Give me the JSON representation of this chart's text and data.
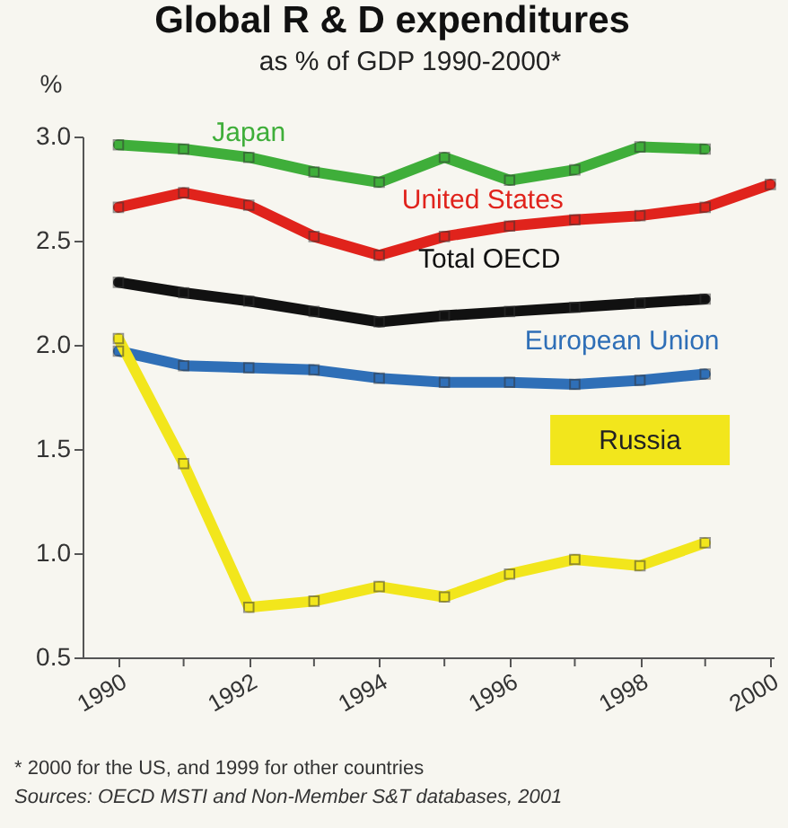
{
  "chart_data": {
    "type": "line",
    "title": "Global R & D expenditures",
    "subtitle": "as % of GDP 1990-2000*",
    "ylabel": "%",
    "x": [
      1990,
      1991,
      1992,
      1993,
      1994,
      1995,
      1996,
      1997,
      1998,
      1999
    ],
    "series": [
      {
        "name": "Japan",
        "color": "#3fae3a",
        "values": [
          2.96,
          2.94,
          2.9,
          2.83,
          2.78,
          2.9,
          2.79,
          2.84,
          2.95,
          2.94
        ]
      },
      {
        "name": "United States",
        "color": "#e0231c",
        "x": [
          1990,
          1991,
          1992,
          1993,
          1994,
          1995,
          1996,
          1997,
          1998,
          1999,
          2000
        ],
        "values": [
          2.66,
          2.73,
          2.67,
          2.52,
          2.43,
          2.52,
          2.57,
          2.6,
          2.62,
          2.66,
          2.77
        ]
      },
      {
        "name": "Total OECD",
        "color": "#111111",
        "values": [
          2.3,
          2.25,
          2.21,
          2.16,
          2.11,
          2.14,
          2.16,
          2.18,
          2.2,
          2.22
        ]
      },
      {
        "name": "European Union",
        "color": "#2f6fb7",
        "values": [
          1.97,
          1.9,
          1.89,
          1.88,
          1.84,
          1.82,
          1.82,
          1.81,
          1.83,
          1.86
        ]
      },
      {
        "name": "Russia",
        "color": "#f2e61c",
        "values": [
          2.03,
          1.43,
          0.74,
          0.77,
          0.84,
          0.79,
          0.9,
          0.97,
          0.94,
          1.05
        ]
      }
    ],
    "xlim": [
      1989.45,
      2000.05
    ],
    "xticks": [
      1990,
      {
        "value": 1991,
        "label": null
      },
      1992,
      {
        "value": 1993,
        "label": null
      },
      1994,
      {
        "value": 1995,
        "label": null
      },
      1996,
      {
        "value": 1997,
        "label": null
      },
      1998,
      {
        "value": 1999,
        "label": null
      },
      2000
    ],
    "ylim": [
      0.5,
      3.0
    ],
    "yticks": [
      0.5,
      {
        "value": 1,
        "label": "1.0"
      },
      1.5,
      {
        "value": 2,
        "label": "2.0"
      },
      2.5,
      {
        "value": 3,
        "label": "3.0"
      }
    ],
    "grid": false,
    "legend": false,
    "marker": "square",
    "line_style": "solid",
    "annotations": [
      "* 2000 for the US, and 1999 for other countries",
      "Sources: OECD MSTI and Non-Member S&T databases, 2001"
    ]
  }
}
